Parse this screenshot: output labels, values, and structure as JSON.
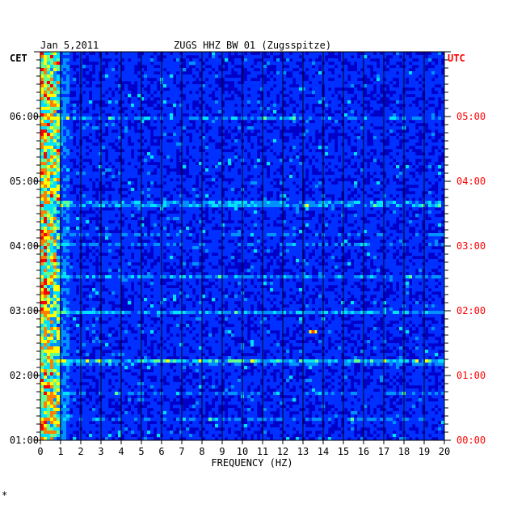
{
  "chart_data": {
    "type": "heatmap",
    "title": "ZUGS HHZ BW 01 (Zugsspitze)",
    "date": "Jan 5,2011",
    "left_axis_label": "CET",
    "right_axis_label": "UTC",
    "xlabel": "FREQUENCY (HZ)",
    "x_ticks": [
      "0",
      "1",
      "2",
      "3",
      "4",
      "5",
      "6",
      "7",
      "8",
      "9",
      "10",
      "11",
      "12",
      "13",
      "14",
      "15",
      "16",
      "17",
      "18",
      "19",
      "20"
    ],
    "xlim": [
      0,
      20
    ],
    "left_ticks": [
      "06:00",
      "05:00",
      "04:00",
      "03:00",
      "02:00",
      "01:00"
    ],
    "right_ticks": [
      "05:00",
      "04:00",
      "03:00",
      "02:00",
      "01:00",
      "00:00"
    ],
    "colors": {
      "background": "#0000c8",
      "grid": "#000000",
      "right_axis": "#ff0000",
      "text": "#000000"
    },
    "colormap": [
      "#000080",
      "#0000c8",
      "#0030ff",
      "#0090ff",
      "#00e0ff",
      "#60ff90",
      "#ffff00",
      "#ff8000",
      "#ff0000"
    ],
    "notable_features": [
      {
        "label": "strong low-frequency energy",
        "freq_range_hz": [
          0,
          0.8
        ]
      },
      {
        "label": "bright spot",
        "freq_hz": 13.3,
        "time_cet": "02:32"
      }
    ],
    "footer_mark": "*"
  }
}
